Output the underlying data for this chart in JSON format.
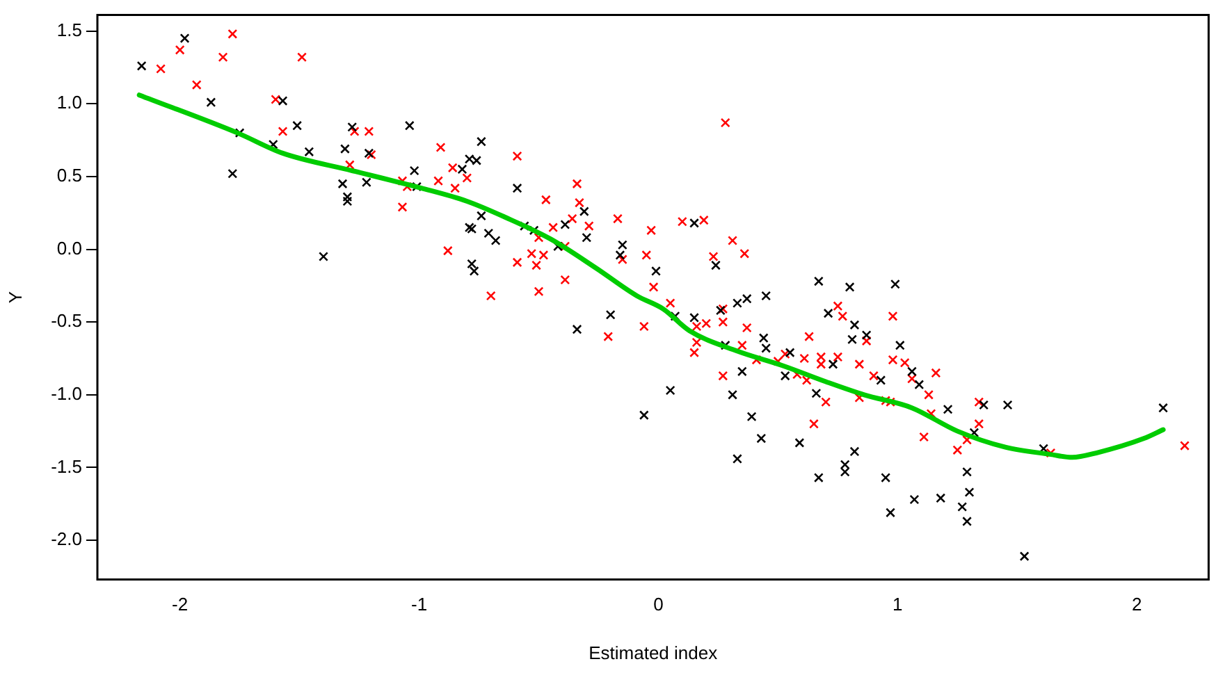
{
  "chart_data": {
    "type": "scatter",
    "xlabel": "Estimated index",
    "ylabel": "Y",
    "xlim": [
      -2.345,
      2.3
    ],
    "ylim": [
      -2.27,
      1.61
    ],
    "xticks": [
      -2,
      -1,
      0,
      1,
      2
    ],
    "yticks": [
      {
        "value": -2,
        "label": "-2.0"
      },
      -1.5,
      {
        "value": -1,
        "label": "-1.0"
      },
      -0.5,
      {
        "value": 0,
        "label": "0.0"
      },
      0.5,
      {
        "value": 1,
        "label": "1.0"
      },
      1.5
    ],
    "grid": false,
    "legend": false,
    "marker": "cross",
    "series": [
      {
        "type": "scatter",
        "color": "#000000",
        "x": [
          -2.16,
          -1.98,
          -1.87,
          -1.78,
          -1.75,
          -1.61,
          -1.51,
          -1.46,
          -1.57,
          -1.4,
          -1.28,
          -1.31,
          -1.21,
          -1.32,
          -1.3,
          -1.3,
          -1.22,
          -1.04,
          -1.02,
          -1.01,
          -0.82,
          -0.79,
          -0.78,
          -0.74,
          -0.79,
          -0.76,
          -0.59,
          -0.74,
          -0.78,
          -0.71,
          -0.68,
          -0.56,
          -0.52,
          -0.39,
          -0.31,
          -0.3,
          -0.42,
          0.15,
          0.67,
          -0.15,
          -0.16,
          -0.01,
          0.24,
          -0.77,
          -0.2,
          -0.34,
          0.07,
          0.15,
          0.05,
          -0.06,
          0.26,
          0.33,
          0.37,
          0.45,
          0.28,
          0.44,
          0.45,
          0.35,
          0.31,
          0.39,
          0.43,
          0.33,
          0.59,
          0.67,
          0.66,
          0.55,
          0.53,
          0.71,
          0.8,
          0.99,
          0.82,
          0.81,
          0.87,
          1.01,
          0.73,
          1.06,
          1.09,
          0.93,
          1.21,
          1.36,
          1.46,
          1.32,
          2.11,
          1.61,
          0.82,
          0.78,
          0.78,
          0.95,
          1.29,
          1.3,
          1.07,
          1.18,
          0.97,
          1.27,
          1.29,
          1.53
        ],
        "values": [
          1.26,
          1.45,
          1.01,
          0.52,
          0.8,
          0.72,
          0.85,
          0.67,
          1.02,
          -0.05,
          0.84,
          0.69,
          0.66,
          0.45,
          0.36,
          0.33,
          0.46,
          0.85,
          0.54,
          0.43,
          0.55,
          0.15,
          -0.1,
          0.74,
          0.62,
          0.61,
          0.42,
          0.23,
          0.14,
          0.11,
          0.06,
          0.16,
          0.13,
          0.17,
          0.26,
          0.08,
          0.02,
          0.18,
          -0.22,
          0.03,
          -0.04,
          -0.15,
          -0.11,
          -0.15,
          -0.45,
          -0.55,
          -0.46,
          -0.47,
          -0.97,
          -1.14,
          -0.42,
          -0.37,
          -0.34,
          -0.32,
          -0.66,
          -0.61,
          -0.68,
          -0.84,
          -1.0,
          -1.15,
          -1.3,
          -1.44,
          -1.33,
          -1.57,
          -0.99,
          -0.71,
          -0.87,
          -0.44,
          -0.26,
          -0.24,
          -0.52,
          -0.62,
          -0.59,
          -0.66,
          -0.79,
          -0.84,
          -0.93,
          -0.9,
          -1.1,
          -1.07,
          -1.07,
          -1.26,
          -1.09,
          -1.37,
          -1.39,
          -1.48,
          -1.53,
          -1.57,
          -1.53,
          -1.67,
          -1.72,
          -1.71,
          -1.81,
          -1.77,
          -1.87,
          -2.11
        ]
      },
      {
        "type": "scatter",
        "color": "#ff0000",
        "x": [
          -1.6,
          -1.78,
          -2.0,
          -1.82,
          -2.08,
          -1.93,
          -1.49,
          -1.57,
          -1.27,
          -1.21,
          -1.2,
          -1.29,
          -1.07,
          -1.07,
          -1.05,
          -0.91,
          -0.92,
          -0.85,
          -0.86,
          -0.8,
          -0.88,
          -0.59,
          -0.34,
          -0.47,
          -0.5,
          -0.44,
          -0.36,
          -0.33,
          -0.29,
          -0.39,
          -0.17,
          -0.03,
          0.1,
          0.19,
          0.28,
          0.31,
          0.36,
          -0.15,
          -0.05,
          -0.02,
          0.23,
          -0.59,
          -0.53,
          -0.48,
          -0.51,
          -0.39,
          -0.7,
          -0.5,
          -0.21,
          -0.06,
          0.05,
          0.16,
          0.2,
          0.16,
          0.15,
          0.27,
          0.27,
          0.37,
          0.35,
          0.41,
          0.27,
          0.65,
          0.7,
          0.5,
          0.53,
          0.61,
          0.63,
          0.58,
          0.62,
          0.68,
          0.68,
          0.75,
          0.77,
          0.98,
          0.87,
          0.75,
          0.84,
          0.98,
          1.03,
          1.16,
          1.06,
          0.9,
          1.13,
          0.84,
          0.95,
          0.97,
          1.14,
          1.34,
          1.34,
          1.29,
          1.25,
          1.11,
          2.2,
          1.64
        ],
        "values": [
          1.03,
          1.48,
          1.37,
          1.32,
          1.24,
          1.13,
          1.32,
          0.81,
          0.81,
          0.81,
          0.65,
          0.58,
          0.47,
          0.29,
          0.43,
          0.7,
          0.47,
          0.42,
          0.56,
          0.49,
          -0.01,
          0.64,
          0.45,
          0.34,
          0.08,
          0.15,
          0.21,
          0.32,
          0.16,
          0.02,
          0.21,
          0.13,
          0.19,
          0.2,
          0.87,
          0.06,
          -0.03,
          -0.07,
          -0.04,
          -0.26,
          -0.05,
          -0.09,
          -0.03,
          -0.04,
          -0.11,
          -0.21,
          -0.32,
          -0.29,
          -0.6,
          -0.53,
          -0.37,
          -0.53,
          -0.51,
          -0.64,
          -0.71,
          -0.41,
          -0.5,
          -0.54,
          -0.66,
          -0.76,
          -0.87,
          -1.2,
          -1.05,
          -0.77,
          -0.72,
          -0.75,
          -0.6,
          -0.86,
          -0.9,
          -0.74,
          -0.79,
          -0.39,
          -0.46,
          -0.46,
          -0.63,
          -0.74,
          -0.79,
          -0.76,
          -0.78,
          -0.85,
          -0.89,
          -0.87,
          -1.0,
          -1.02,
          -1.04,
          -1.05,
          -1.13,
          -1.05,
          -1.2,
          -1.31,
          -1.38,
          -1.29,
          -1.35,
          -1.4
        ]
      },
      {
        "type": "line",
        "color": "#00cc00",
        "marker": "none",
        "line_style": "solid",
        "x": [
          -2.17,
          -1.76,
          -1.57,
          -1.28,
          -0.99,
          -0.8,
          -0.64,
          -0.45,
          -0.26,
          -0.09,
          0.02,
          0.13,
          0.33,
          0.52,
          0.7,
          0.86,
          1.06,
          1.25,
          1.45,
          1.64,
          1.73,
          1.83,
          2.03,
          2.11
        ],
        "values": [
          1.06,
          0.8,
          0.66,
          0.54,
          0.42,
          0.33,
          0.22,
          0.07,
          -0.13,
          -0.32,
          -0.41,
          -0.56,
          -0.7,
          -0.8,
          -0.91,
          -1.0,
          -1.09,
          -1.25,
          -1.36,
          -1.41,
          -1.43,
          -1.4,
          -1.3,
          -1.24
        ]
      }
    ]
  }
}
